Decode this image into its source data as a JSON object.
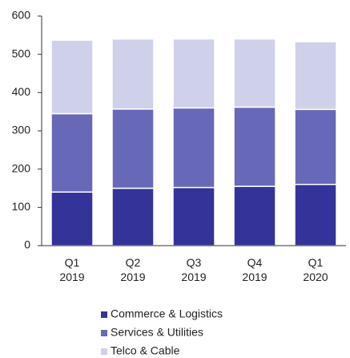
{
  "chart_data": {
    "type": "stacked_bar",
    "categories": [
      "Q1 2019",
      "Q2 2019",
      "Q3 2019",
      "Q4 2019",
      "Q1 2020"
    ],
    "series": [
      {
        "name": "Commerce & Logistics",
        "color": "#33339a",
        "values": [
          140,
          150,
          152,
          155,
          160
        ]
      },
      {
        "name": "Services & Utilities",
        "color": "#6868b8",
        "values": [
          205,
          207,
          208,
          207,
          196
        ]
      },
      {
        "name": "Telco & Cable",
        "color": "#cfd0ea",
        "values": [
          192,
          183,
          180,
          178,
          177
        ]
      }
    ],
    "ylim": [
      0,
      600
    ],
    "yticks": [
      0,
      100,
      200,
      300,
      400,
      500,
      600
    ],
    "grid": false
  }
}
